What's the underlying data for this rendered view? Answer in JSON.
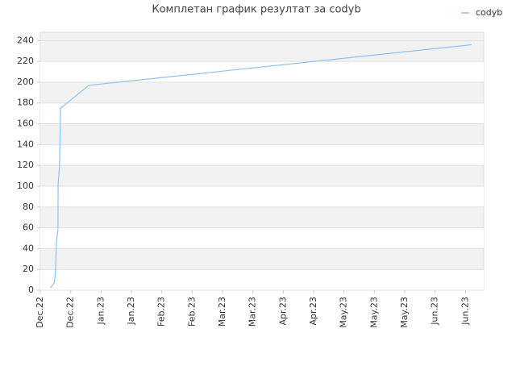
{
  "chart_data": {
    "type": "line",
    "title": "Комплетан график резултат за codyb",
    "x": [
      5,
      7,
      7.5,
      8,
      8.7,
      8.8,
      9.5,
      10,
      24,
      213
    ],
    "series": [
      {
        "name": "codyb",
        "color": "#8ec3f5",
        "values": [
          2,
          8,
          19,
          47,
          58,
          102,
          120,
          175,
          197,
          236
        ]
      }
    ],
    "xlim": [
      0,
      219
    ],
    "xticks": [
      {
        "value": 0,
        "label": "Dec.22"
      },
      {
        "value": 15,
        "label": "Dec.22"
      },
      {
        "value": 30,
        "label": "Jan.23"
      },
      {
        "value": 45,
        "label": "Jan.23"
      },
      {
        "value": 60,
        "label": "Feb.23"
      },
      {
        "value": 75,
        "label": "Feb.23"
      },
      {
        "value": 90,
        "label": "Mar.23"
      },
      {
        "value": 105,
        "label": "Mar.23"
      },
      {
        "value": 120,
        "label": "Apr.23"
      },
      {
        "value": 135,
        "label": "Apr.23"
      },
      {
        "value": 150,
        "label": "May.23"
      },
      {
        "value": 165,
        "label": "May.23"
      },
      {
        "value": 180,
        "label": "May.23"
      },
      {
        "value": 195,
        "label": "Jun.23"
      },
      {
        "value": 210,
        "label": "Jun.23"
      }
    ],
    "ylim": [
      0,
      248
    ],
    "yticks": [
      0,
      20,
      40,
      60,
      80,
      100,
      120,
      140,
      160,
      180,
      200,
      220,
      240
    ],
    "grid": true,
    "legend": "top-right"
  }
}
